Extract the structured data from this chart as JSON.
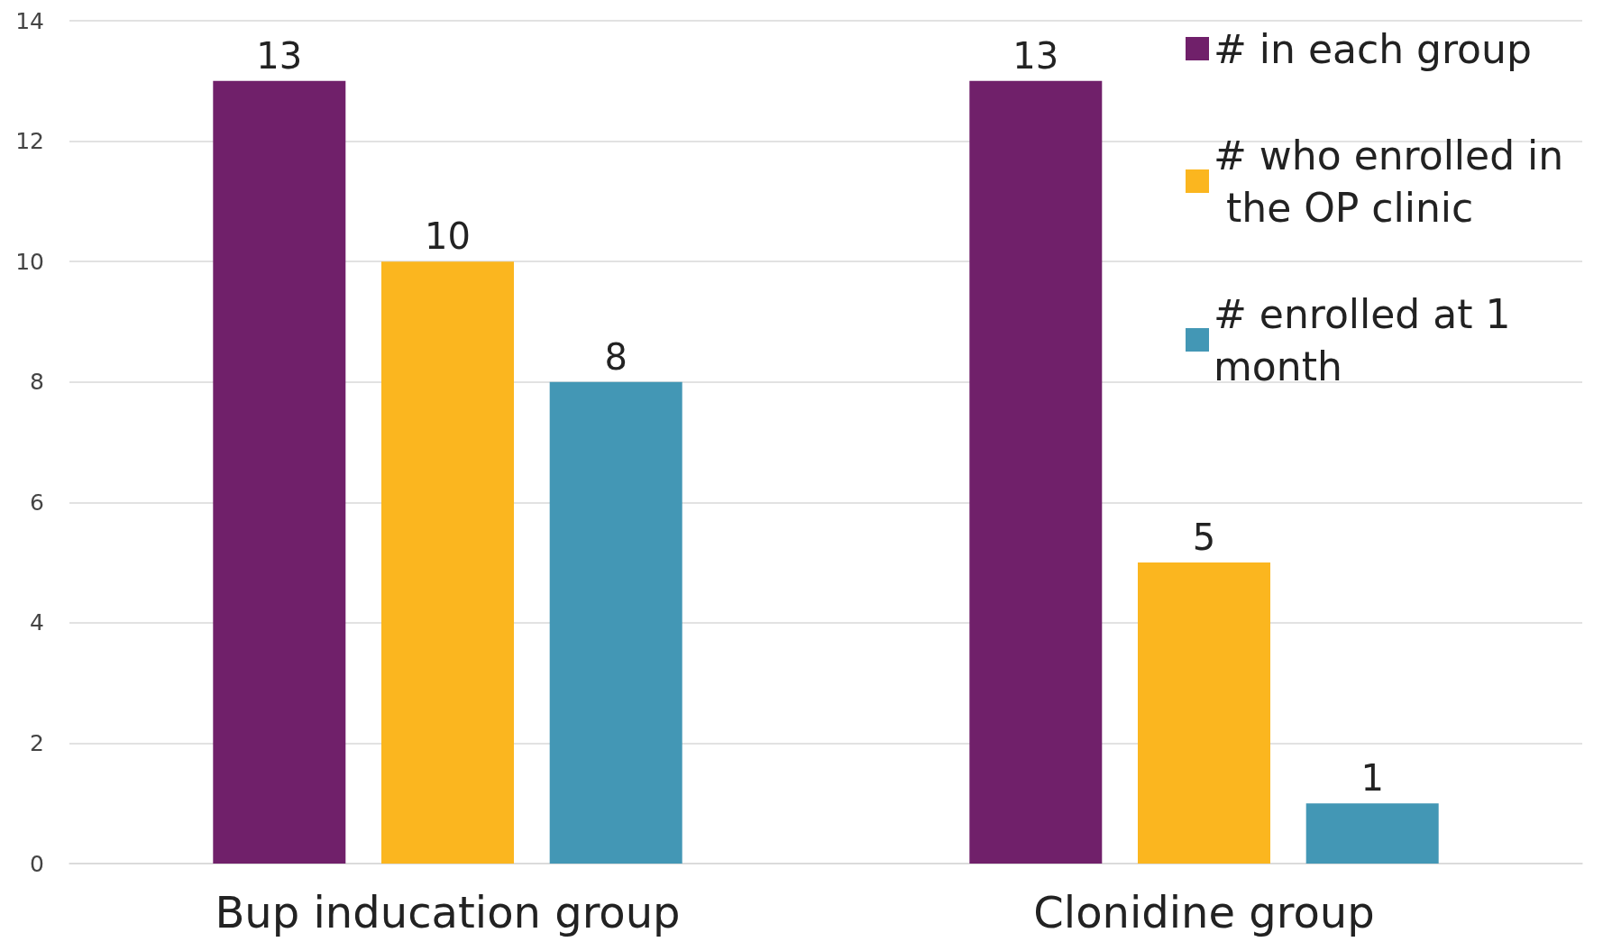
{
  "chart_data": {
    "type": "bar",
    "categories": [
      "Bup inducation group",
      "Clonidine group"
    ],
    "series": [
      {
        "name": "# in each group",
        "color": "#70206a",
        "values": [
          13,
          13
        ]
      },
      {
        "name": "# who enrolled in the OP clinic",
        "color": "#fbb61f",
        "values": [
          10,
          5
        ]
      },
      {
        "name": "# enrolled at 1 month",
        "color": "#4397b5",
        "values": [
          8,
          1
        ]
      }
    ],
    "ylim": [
      0,
      14
    ],
    "yticks": [
      0,
      2,
      4,
      6,
      8,
      10,
      12,
      14
    ],
    "grid": "y",
    "legend": "top right",
    "data_labels": true
  }
}
